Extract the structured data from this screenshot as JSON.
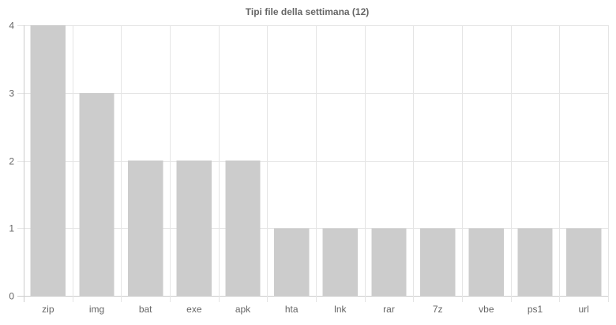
{
  "chart_data": {
    "type": "bar",
    "title": "Tipi file della settimana (12)",
    "xlabel": "",
    "ylabel": "",
    "categories": [
      "zip",
      "img",
      "bat",
      "exe",
      "apk",
      "hta",
      "lnk",
      "rar",
      "7z",
      "vbe",
      "ps1",
      "url"
    ],
    "values": [
      4,
      3,
      2,
      2,
      2,
      1,
      1,
      1,
      1,
      1,
      1,
      1
    ],
    "ylim": [
      0,
      4
    ],
    "yticks": [
      0,
      1,
      2,
      3,
      4
    ],
    "grid": true,
    "legend": "none",
    "bar_color": "#cccccc"
  }
}
